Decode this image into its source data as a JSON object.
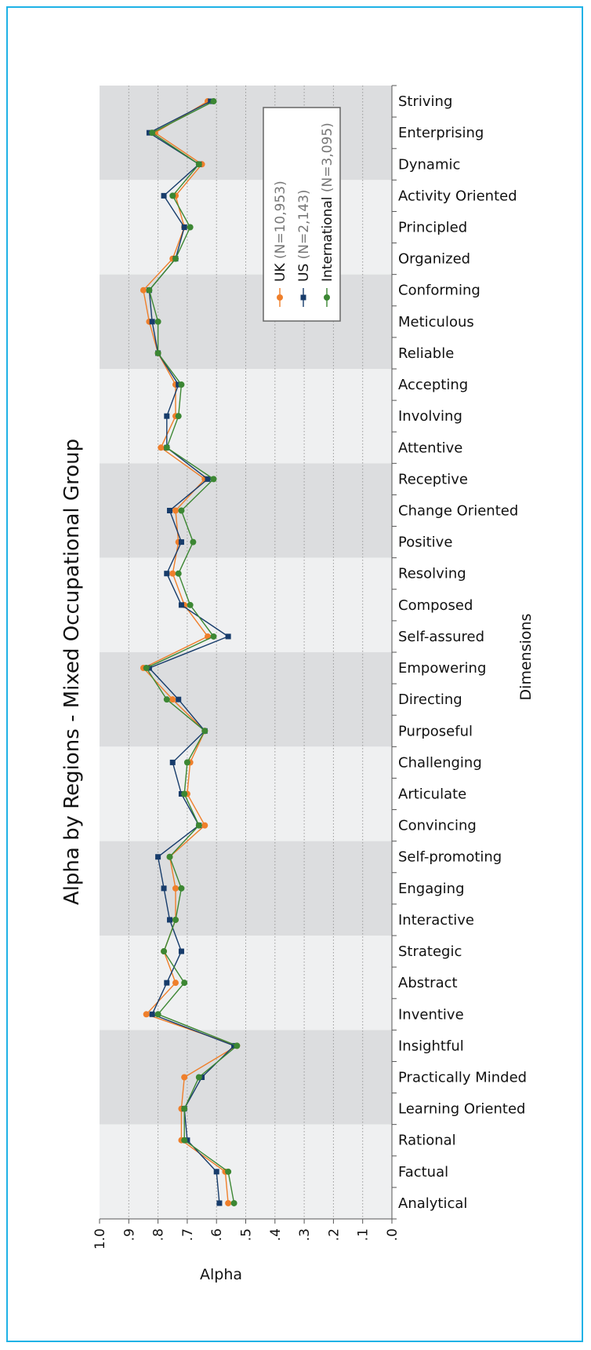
{
  "chart_data": {
    "type": "line",
    "title": "Alpha by Regions - Mixed Occupational Group",
    "xlabel": "Alpha",
    "ylabel": "Dimensions",
    "xlim": [
      1.0,
      0.0
    ],
    "x_ticks": [
      "1.0",
      ".9",
      ".8",
      ".7",
      ".6",
      ".5",
      ".4",
      ".3",
      ".2",
      ".1",
      ".0"
    ],
    "grid": "vertical dotted",
    "legend_position": "top-right",
    "categories": [
      "Striving",
      "Enterprising",
      "Dynamic",
      "Activity Oriented",
      "Principled",
      "Organized",
      "Conforming",
      "Meticulous",
      "Reliable",
      "Accepting",
      "Involving",
      "Attentive",
      "Receptive",
      "Change Oriented",
      "Positive",
      "Resolving",
      "Composed",
      "Self-assured",
      "Empowering",
      "Directing",
      "Purposeful",
      "Challenging",
      "Articulate",
      "Convincing",
      "Self-promoting",
      "Engaging",
      "Interactive",
      "Strategic",
      "Abstract",
      "Inventive",
      "Insightful",
      "Practically Minded",
      "Learning Oriented",
      "Rational",
      "Factual",
      "Analytical"
    ],
    "band_groups": [
      3,
      3,
      3,
      3,
      3,
      3,
      3,
      3,
      3,
      3,
      3,
      3
    ],
    "series": [
      {
        "name": "UK",
        "n_label": "(N=10,953)",
        "color": "#ef7f2b",
        "marker": "circle",
        "values": [
          0.63,
          0.81,
          0.65,
          0.74,
          0.71,
          0.75,
          0.85,
          0.83,
          0.8,
          0.74,
          0.74,
          0.79,
          0.64,
          0.74,
          0.73,
          0.75,
          0.71,
          0.63,
          0.85,
          0.75,
          0.64,
          0.69,
          0.7,
          0.64,
          0.76,
          0.74,
          0.74,
          0.78,
          0.74,
          0.84,
          0.53,
          0.71,
          0.72,
          0.72,
          0.57,
          0.56
        ]
      },
      {
        "name": "US",
        "n_label": "(N=2,143)",
        "color": "#173c6b",
        "marker": "square",
        "values": [
          0.62,
          0.83,
          0.66,
          0.78,
          0.71,
          0.74,
          0.83,
          0.82,
          0.8,
          0.73,
          0.77,
          0.77,
          0.63,
          0.76,
          0.72,
          0.77,
          0.72,
          0.56,
          0.83,
          0.73,
          0.64,
          0.75,
          0.72,
          0.66,
          0.8,
          0.78,
          0.76,
          0.72,
          0.77,
          0.82,
          0.54,
          0.65,
          0.71,
          0.7,
          0.6,
          0.59
        ]
      },
      {
        "name": "International",
        "n_label": "(N=3,095)",
        "color": "#3c8733",
        "marker": "circle",
        "values": [
          0.61,
          0.82,
          0.66,
          0.75,
          0.69,
          0.74,
          0.83,
          0.8,
          0.8,
          0.72,
          0.73,
          0.77,
          0.61,
          0.72,
          0.68,
          0.73,
          0.69,
          0.61,
          0.84,
          0.77,
          0.64,
          0.7,
          0.71,
          0.66,
          0.76,
          0.72,
          0.74,
          0.78,
          0.71,
          0.8,
          0.53,
          0.66,
          0.71,
          0.71,
          0.56,
          0.54
        ]
      }
    ]
  }
}
